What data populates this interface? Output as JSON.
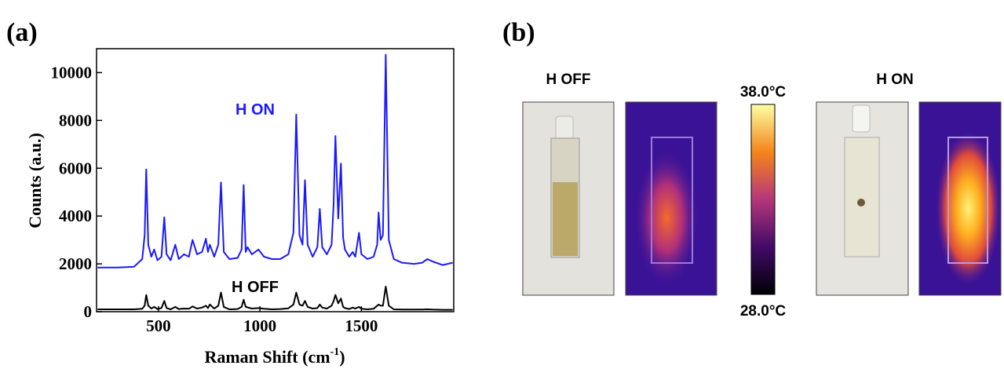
{
  "panel_a_label": "(a)",
  "chart_data": {
    "type": "line",
    "ylabel": "Counts (a.u.)",
    "xlabel": {
      "text": "Raman Shift (cm",
      "superscript": "-1",
      "suffix": ")"
    },
    "xlim": [
      195,
      1955
    ],
    "ylim": [
      0,
      11000
    ],
    "xticks": [
      500,
      1000,
      1500
    ],
    "yticks": [
      0,
      2000,
      4000,
      6000,
      8000,
      10000
    ],
    "annotations": [
      {
        "text": "H ON",
        "color": "#1a1aff"
      },
      {
        "text": "H OFF",
        "color": "#000000"
      }
    ],
    "x": [
      200,
      300,
      380,
      420,
      432,
      440,
      450,
      465,
      479,
      495,
      515,
      529,
      540,
      560,
      583,
      600,
      626,
      650,
      668,
      690,
      715,
      734,
      744,
      753,
      775,
      795,
      808,
      822,
      850,
      890,
      910,
      920,
      930,
      939,
      960,
      993,
      1020,
      1060,
      1100,
      1140,
      1165,
      1179,
      1195,
      1210,
      1222,
      1235,
      1260,
      1283,
      1295,
      1307,
      1330,
      1353,
      1363,
      1372,
      1386,
      1399,
      1410,
      1419,
      1440,
      1457,
      1470,
      1488,
      1500,
      1530,
      1560,
      1578,
      1585,
      1595,
      1606,
      1620,
      1635,
      1660,
      1700,
      1760,
      1800,
      1825,
      1850,
      1900,
      1950
    ],
    "series": [
      {
        "name": "H ON",
        "color": "#1a1aff",
        "values": [
          1850,
          1850,
          1880,
          2200,
          3200,
          5950,
          2800,
          2300,
          2600,
          2150,
          2300,
          3950,
          2400,
          2150,
          2800,
          2200,
          2400,
          2300,
          3000,
          2400,
          2500,
          3050,
          2500,
          2800,
          2300,
          2800,
          5400,
          2500,
          2200,
          2250,
          2600,
          5300,
          2500,
          2700,
          2400,
          2600,
          2300,
          2200,
          2200,
          2400,
          3300,
          8250,
          3200,
          2800,
          5500,
          2800,
          2300,
          2700,
          4300,
          2700,
          2400,
          2800,
          4500,
          7350,
          3900,
          6200,
          3100,
          2600,
          2300,
          2500,
          2300,
          3300,
          2400,
          2200,
          2300,
          2800,
          4150,
          3000,
          3200,
          10750,
          3000,
          2200,
          2050,
          2000,
          2050,
          2200,
          2100,
          1950,
          2050
        ]
      },
      {
        "name": "H OFF",
        "color": "#000000",
        "values": [
          100,
          100,
          100,
          120,
          250,
          700,
          250,
          130,
          200,
          110,
          150,
          450,
          150,
          100,
          200,
          110,
          130,
          120,
          220,
          130,
          170,
          250,
          150,
          300,
          130,
          250,
          800,
          200,
          100,
          110,
          200,
          500,
          200,
          180,
          130,
          150,
          120,
          100,
          110,
          140,
          300,
          800,
          300,
          250,
          450,
          200,
          130,
          150,
          300,
          170,
          130,
          250,
          450,
          700,
          350,
          550,
          200,
          150,
          110,
          170,
          130,
          200,
          120,
          100,
          120,
          250,
          300,
          250,
          250,
          1050,
          250,
          100,
          90,
          90,
          90,
          100,
          90,
          80,
          80
        ]
      }
    ]
  },
  "panel_b": {
    "label": "(b)",
    "groups": [
      {
        "title": "H OFF"
      },
      {
        "title": "H ON"
      }
    ],
    "colorbar": {
      "max_label": "38.0°C",
      "min_label": "28.0°C"
    }
  }
}
